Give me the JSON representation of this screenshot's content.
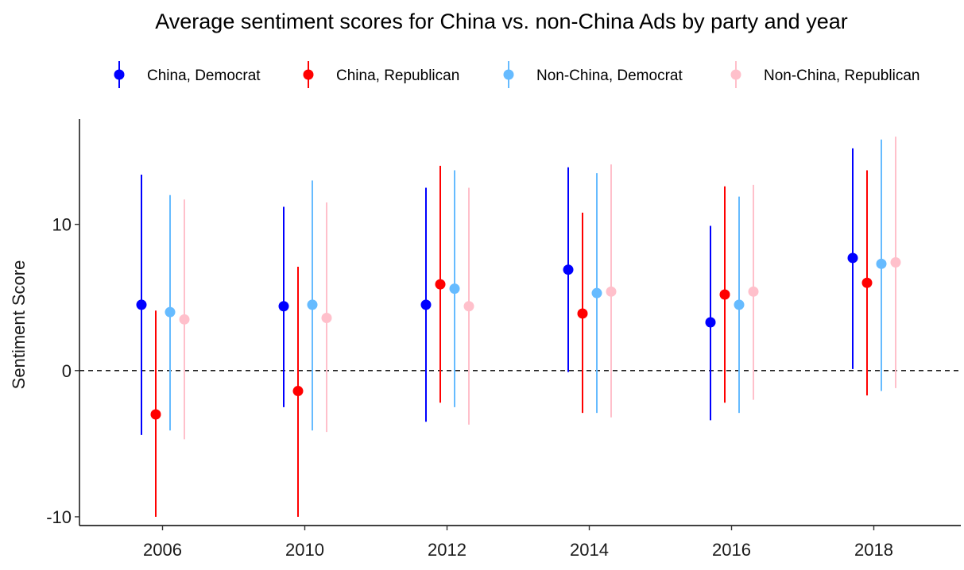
{
  "chart_data": {
    "type": "errorbar",
    "title": "Average sentiment scores for China vs. non-China Ads by party and year",
    "xlabel": "",
    "ylabel": "Sentiment Score",
    "categories": [
      "2006",
      "2010",
      "2012",
      "2014",
      "2016",
      "2018"
    ],
    "ylim": [
      -10.6,
      17.2
    ],
    "yticks": [
      -10,
      0,
      10
    ],
    "reference_line": {
      "y": 0,
      "style": "dashed"
    },
    "legend": {
      "position": "top"
    },
    "series": [
      {
        "name": "China, Democrat",
        "color": "#0000ff",
        "values": [
          4.5,
          4.4,
          4.5,
          6.9,
          3.3,
          7.7
        ],
        "lower": [
          -4.4,
          -2.5,
          -3.5,
          -0.1,
          -3.4,
          0.1
        ],
        "upper": [
          13.4,
          11.2,
          12.5,
          13.9,
          9.9,
          15.2
        ]
      },
      {
        "name": "China, Republican",
        "color": "#ff0000",
        "values": [
          -3.0,
          -1.4,
          5.9,
          3.9,
          5.2,
          6.0
        ],
        "lower": [
          -10.0,
          -10.0,
          -2.2,
          -2.9,
          -2.2,
          -1.7
        ],
        "upper": [
          4.1,
          7.1,
          14.0,
          10.8,
          12.6,
          13.7
        ]
      },
      {
        "name": "Non-China, Democrat",
        "color": "#66bbff",
        "values": [
          4.0,
          4.5,
          5.6,
          5.3,
          4.5,
          7.3
        ],
        "lower": [
          -4.1,
          -4.1,
          -2.5,
          -2.9,
          -2.9,
          -1.4
        ],
        "upper": [
          12.0,
          13.0,
          13.7,
          13.5,
          11.9,
          15.8
        ]
      },
      {
        "name": "Non-China, Republican",
        "color": "#ffc0cb",
        "values": [
          3.5,
          3.6,
          4.4,
          5.4,
          5.4,
          7.4
        ],
        "lower": [
          -4.7,
          -4.2,
          -3.7,
          -3.2,
          -2.0,
          -1.2
        ],
        "upper": [
          11.7,
          11.5,
          12.5,
          14.1,
          12.7,
          16.0
        ]
      }
    ]
  }
}
